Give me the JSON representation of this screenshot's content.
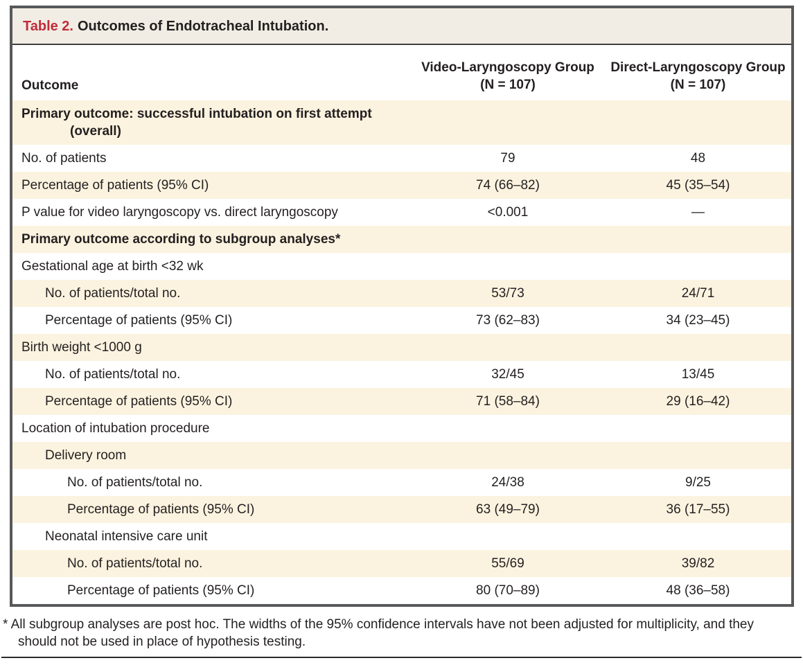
{
  "table": {
    "title_label": "Table 2.",
    "title_text": "Outcomes of Endotracheal Intubation.",
    "columns": {
      "outcome": "Outcome",
      "video": {
        "name": "Video-Laryngoscopy Group",
        "n": "(N = 107)"
      },
      "direct": {
        "name": "Direct-Laryngoscopy Group",
        "n": "(N = 107)"
      }
    },
    "rows": [
      {
        "label": "Primary outcome: successful intubation on first attempt (overall)",
        "indent": 0,
        "bold": true
      },
      {
        "label": "No. of patients",
        "indent": 0,
        "bold": false,
        "video": "79",
        "direct": "48"
      },
      {
        "label": "Percentage of patients (95% CI)",
        "indent": 0,
        "bold": false,
        "video": "74 (66–82)",
        "direct": "45 (35–54)"
      },
      {
        "label": "P value for video laryngoscopy vs. direct laryngoscopy",
        "indent": 0,
        "bold": false,
        "video": "<0.001",
        "direct": "—"
      },
      {
        "label": "Primary outcome according to subgroup analyses*",
        "indent": 0,
        "bold": true
      },
      {
        "label": "Gestational age at birth <32 wk",
        "indent": 0,
        "bold": false
      },
      {
        "label": "No. of patients/total no.",
        "indent": 1,
        "bold": false,
        "video": "53/73",
        "direct": "24/71"
      },
      {
        "label": "Percentage of patients (95% CI)",
        "indent": 1,
        "bold": false,
        "video": "73 (62–83)",
        "direct": "34 (23–45)"
      },
      {
        "label": "Birth weight <1000 g",
        "indent": 0,
        "bold": false
      },
      {
        "label": "No. of patients/total no.",
        "indent": 1,
        "bold": false,
        "video": "32/45",
        "direct": "13/45"
      },
      {
        "label": "Percentage of patients (95% CI)",
        "indent": 1,
        "bold": false,
        "video": "71 (58–84)",
        "direct": "29 (16–42)"
      },
      {
        "label": "Location of intubation procedure",
        "indent": 0,
        "bold": false
      },
      {
        "label": "Delivery room",
        "indent": 1,
        "bold": false
      },
      {
        "label": "No. of patients/total no.",
        "indent": 2,
        "bold": false,
        "video": "24/38",
        "direct": "9/25"
      },
      {
        "label": "Percentage of patients (95% CI)",
        "indent": 2,
        "bold": false,
        "video": "63 (49–79)",
        "direct": "36 (17–55)"
      },
      {
        "label": "Neonatal intensive care unit",
        "indent": 1,
        "bold": false
      },
      {
        "label": "No. of patients/total no.",
        "indent": 2,
        "bold": false,
        "video": "55/69",
        "direct": "39/82"
      },
      {
        "label": "Percentage of patients (95% CI)",
        "indent": 2,
        "bold": false,
        "video": "80 (70–89)",
        "direct": "48 (36–58)"
      }
    ],
    "footnote": "* All subgroup analyses are post hoc. The widths of the 95% confidence intervals have not been adjusted for multiplicity, and they should not be used in place of hypothesis testing."
  },
  "colors": {
    "title_red": "#c12b39",
    "row_cream": "#fbf3df",
    "border_gray": "#57585a",
    "text": "#231f20"
  }
}
